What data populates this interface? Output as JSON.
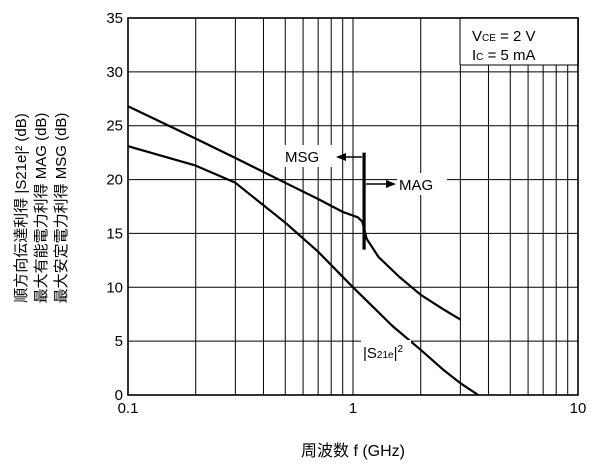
{
  "chart_data": {
    "type": "line",
    "xscale": "log",
    "xlim": [
      0.1,
      10
    ],
    "ylim": [
      0,
      35
    ],
    "xlabel": "周波数  f (GHz)",
    "ylabel_lines": [
      "順方向伝達利得  |S21e|² (dB)",
      "最大有能電力利得  MAG (dB)",
      "最大安定電力利得  MSG (dB)"
    ],
    "x_ticks": [
      {
        "value": 0.1,
        "label": "0.1"
      },
      {
        "value": 1,
        "label": "1"
      },
      {
        "value": 10,
        "label": "10"
      }
    ],
    "y_ticks": [
      {
        "value": 0,
        "label": "0"
      },
      {
        "value": 5,
        "label": "5"
      },
      {
        "value": 10,
        "label": "10"
      },
      {
        "value": 15,
        "label": "15"
      },
      {
        "value": 20,
        "label": "20"
      },
      {
        "value": 25,
        "label": "25"
      },
      {
        "value": 30,
        "label": "30"
      },
      {
        "value": 35,
        "label": "35"
      }
    ],
    "grid": true,
    "conditions": [
      "VCE = 2 V",
      "IC = 5 mA"
    ],
    "series": [
      {
        "name": "MSG / MAG",
        "x": [
          0.1,
          0.2,
          0.3,
          0.5,
          0.7,
          0.9,
          1.05,
          1.1,
          1.15,
          1.3,
          1.6,
          2.0,
          2.5,
          3.0
        ],
        "y": [
          26.8,
          23.8,
          22.0,
          19.7,
          18.2,
          17.0,
          16.5,
          16.1,
          14.5,
          12.8,
          11.0,
          9.3,
          8.0,
          7.0
        ]
      },
      {
        "name": "|S21e|²",
        "x": [
          0.1,
          0.2,
          0.3,
          0.5,
          0.7,
          1.0,
          1.5,
          2.0,
          2.5,
          3.0,
          3.6
        ],
        "y": [
          23.1,
          21.3,
          19.7,
          16.0,
          13.3,
          10.0,
          6.4,
          4.2,
          2.4,
          1.1,
          0.0
        ]
      }
    ],
    "annotations": {
      "msg": "MSG",
      "mag": "MAG",
      "s21": "|S21e|²",
      "divider_x": 1.12,
      "divider_y": [
        13.5,
        22.5
      ]
    }
  }
}
